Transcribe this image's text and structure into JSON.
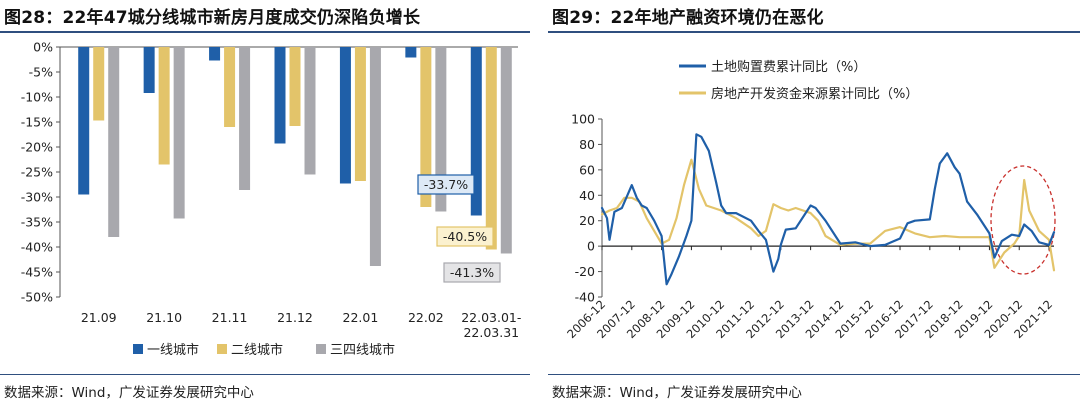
{
  "left_figure": {
    "title": "图28：22年47城分线城市新房月度成交仍深陷负增长",
    "source": "数据来源：Wind，广发证券发展研究中心"
  },
  "right_figure": {
    "title": "图29：22年地产融资环境仍在恶化",
    "source": "数据来源：Wind，广发证券发展研究中心"
  },
  "chart_data": [
    {
      "type": "bar",
      "title": "",
      "xlabel": "",
      "ylabel": "",
      "ylim": [
        -50,
        0
      ],
      "y_ticks": [
        "0%",
        "-5%",
        "-10%",
        "-15%",
        "-20%",
        "-25%",
        "-30%",
        "-35%",
        "-40%",
        "-45%",
        "-50%"
      ],
      "categories": [
        "21.09",
        "21.10",
        "21.11",
        "21.12",
        "22.01",
        "22.02",
        "22.03.01-22.03.31"
      ],
      "category_labels": [
        [
          "21.09"
        ],
        [
          "21.10"
        ],
        [
          "21.11"
        ],
        [
          "21.12"
        ],
        [
          "22.01"
        ],
        [
          "22.02"
        ],
        [
          "22.03.01-",
          "22.03.31"
        ]
      ],
      "series": [
        {
          "name": "一线城市",
          "color": "#1f5fa8",
          "values": [
            -29.5,
            -9.2,
            -2.7,
            -19.3,
            -27.3,
            -2.1,
            -33.7
          ]
        },
        {
          "name": "二线城市",
          "color": "#e3c46a",
          "values": [
            -14.7,
            -23.5,
            -16.0,
            -15.8,
            -26.8,
            -32.0,
            -40.5
          ]
        },
        {
          "name": "三四线城市",
          "color": "#a8a8ad",
          "values": [
            -38.0,
            -34.3,
            -28.6,
            -25.5,
            -43.8,
            -32.9,
            -41.3
          ]
        }
      ],
      "annotations": [
        {
          "series": 0,
          "category": 6,
          "text": "-33.7%"
        },
        {
          "series": 1,
          "category": 6,
          "text": "-40.5%"
        },
        {
          "series": 2,
          "category": 6,
          "text": "-41.3%"
        }
      ],
      "legend_position": "bottom",
      "grid": false
    },
    {
      "type": "line",
      "title": "",
      "xlabel": "",
      "ylabel": "",
      "ylim": [
        -40,
        100
      ],
      "y_ticks": [
        "100",
        "80",
        "60",
        "40",
        "20",
        "0",
        "-20",
        "-40"
      ],
      "x_ticks": [
        "2006-12",
        "2007-12",
        "2008-12",
        "2009-12",
        "2010-12",
        "2011-12",
        "2012-12",
        "2013-12",
        "2014-12",
        "2015-12",
        "2016-12",
        "2017-12",
        "2018-12",
        "2019-12",
        "2020-12",
        "2021-12"
      ],
      "x_range": [
        "2006-12",
        "2022-02"
      ],
      "series": [
        {
          "name": "土地购置费累计同比（%）",
          "color": "#1f5fa8",
          "points": [
            [
              "2006-12",
              30
            ],
            [
              "2007-02",
              22
            ],
            [
              "2007-03",
              5
            ],
            [
              "2007-05",
              27
            ],
            [
              "2007-08",
              30
            ],
            [
              "2007-12",
              48
            ],
            [
              "2008-02",
              38
            ],
            [
              "2008-04",
              32
            ],
            [
              "2008-06",
              30
            ],
            [
              "2008-09",
              20
            ],
            [
              "2008-12",
              8
            ],
            [
              "2009-02",
              -30
            ],
            [
              "2009-04",
              -22
            ],
            [
              "2009-07",
              -8
            ],
            [
              "2009-10",
              8
            ],
            [
              "2009-12",
              20
            ],
            [
              "2010-02",
              88
            ],
            [
              "2010-04",
              86
            ],
            [
              "2010-07",
              75
            ],
            [
              "2010-10",
              50
            ],
            [
              "2010-12",
              32
            ],
            [
              "2011-02",
              26
            ],
            [
              "2011-06",
              26
            ],
            [
              "2011-12",
              20
            ],
            [
              "2012-03",
              12
            ],
            [
              "2012-06",
              5
            ],
            [
              "2012-09",
              -20
            ],
            [
              "2012-11",
              -10
            ],
            [
              "2012-12",
              1
            ],
            [
              "2013-02",
              13
            ],
            [
              "2013-06",
              14
            ],
            [
              "2013-12",
              32
            ],
            [
              "2014-02",
              30
            ],
            [
              "2014-06",
              20
            ],
            [
              "2014-12",
              2
            ],
            [
              "2015-06",
              3
            ],
            [
              "2015-12",
              0
            ],
            [
              "2016-06",
              1
            ],
            [
              "2016-12",
              6
            ],
            [
              "2017-03",
              18
            ],
            [
              "2017-06",
              20
            ],
            [
              "2017-12",
              21
            ],
            [
              "2018-02",
              45
            ],
            [
              "2018-04",
              65
            ],
            [
              "2018-07",
              73
            ],
            [
              "2018-10",
              62
            ],
            [
              "2018-12",
              57
            ],
            [
              "2019-03",
              35
            ],
            [
              "2019-07",
              25
            ],
            [
              "2019-12",
              10
            ],
            [
              "2020-02",
              -9
            ],
            [
              "2020-05",
              4
            ],
            [
              "2020-09",
              9
            ],
            [
              "2020-12",
              8
            ],
            [
              "2021-02",
              17
            ],
            [
              "2021-05",
              12
            ],
            [
              "2021-08",
              3
            ],
            [
              "2021-12",
              1
            ],
            [
              "2022-02",
              11
            ]
          ]
        },
        {
          "name": "房地产开发资金来源累计同比（%）",
          "color": "#e3c46a",
          "points": [
            [
              "2006-12",
              25
            ],
            [
              "2007-03",
              28
            ],
            [
              "2007-06",
              30
            ],
            [
              "2007-09",
              38
            ],
            [
              "2007-12",
              38
            ],
            [
              "2008-03",
              35
            ],
            [
              "2008-06",
              22
            ],
            [
              "2008-09",
              12
            ],
            [
              "2008-12",
              2
            ],
            [
              "2009-03",
              5
            ],
            [
              "2009-06",
              22
            ],
            [
              "2009-09",
              48
            ],
            [
              "2009-12",
              68
            ],
            [
              "2010-03",
              45
            ],
            [
              "2010-06",
              32
            ],
            [
              "2010-12",
              28
            ],
            [
              "2011-06",
              22
            ],
            [
              "2011-12",
              14
            ],
            [
              "2012-03",
              8
            ],
            [
              "2012-06",
              12
            ],
            [
              "2012-09",
              33
            ],
            [
              "2012-12",
              30
            ],
            [
              "2013-03",
              28
            ],
            [
              "2013-06",
              30
            ],
            [
              "2013-12",
              26
            ],
            [
              "2014-03",
              20
            ],
            [
              "2014-06",
              8
            ],
            [
              "2014-12",
              1
            ],
            [
              "2015-06",
              2
            ],
            [
              "2015-12",
              2
            ],
            [
              "2016-06",
              12
            ],
            [
              "2016-12",
              15
            ],
            [
              "2017-06",
              10
            ],
            [
              "2017-12",
              7
            ],
            [
              "2018-06",
              8
            ],
            [
              "2018-12",
              7
            ],
            [
              "2019-06",
              7
            ],
            [
              "2019-12",
              7
            ],
            [
              "2020-02",
              -17
            ],
            [
              "2020-06",
              -5
            ],
            [
              "2020-10",
              2
            ],
            [
              "2020-12",
              8
            ],
            [
              "2021-02",
              52
            ],
            [
              "2021-04",
              28
            ],
            [
              "2021-08",
              12
            ],
            [
              "2021-12",
              5
            ],
            [
              "2022-02",
              -19
            ]
          ]
        }
      ],
      "legend_position": "top",
      "grid": false
    }
  ]
}
